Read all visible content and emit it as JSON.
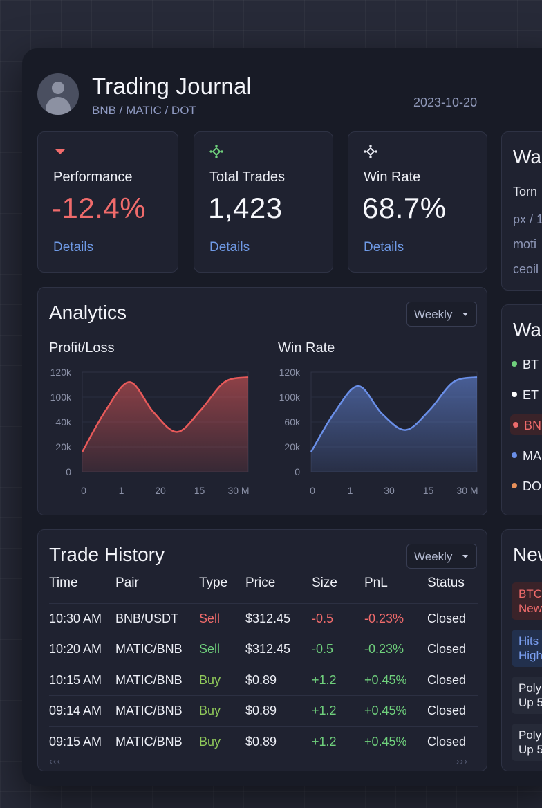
{
  "header": {
    "title": "Trading Journal",
    "subtitle": "BNB / MATIC / DOT",
    "date": "2023-10-20"
  },
  "stats": [
    {
      "label": "Performance",
      "value": "-12.4%",
      "link": "Details",
      "icon": "caret-down-icon",
      "color": "#ef6b6b"
    },
    {
      "label": "Total Trades",
      "value": "1,423",
      "link": "Details",
      "icon": "binance-icon",
      "color": "#6fd07c"
    },
    {
      "label": "Win Rate",
      "value": "68.7%",
      "link": "Details",
      "icon": "binance-icon",
      "color": "#e6e8f0"
    }
  ],
  "analytics": {
    "title": "Analytics",
    "period": "Weekly"
  },
  "chart_data": [
    {
      "type": "area",
      "title": "Profit/Loss",
      "yticks": [
        "120k",
        "100k",
        "40k",
        "20k",
        "0"
      ],
      "xticks": [
        "0",
        "1",
        "20",
        "15",
        "30 M"
      ],
      "color": "#e85a5a",
      "values": [
        0.2,
        0.62,
        0.9,
        0.6,
        0.4,
        0.62,
        0.9,
        0.95
      ]
    },
    {
      "type": "area",
      "title": "Win Rate",
      "yticks": [
        "120k",
        "100k",
        "60k",
        "20k",
        "0"
      ],
      "xticks": [
        "0",
        "1",
        "30",
        "15",
        "30 M"
      ],
      "color": "#6a8fe8",
      "values": [
        0.2,
        0.6,
        0.86,
        0.58,
        0.42,
        0.62,
        0.9,
        0.95
      ]
    }
  ],
  "history": {
    "title": "Trade History",
    "period": "Weekly",
    "columns": [
      "Time",
      "Pair",
      "Type",
      "Price",
      "Size",
      "PnL",
      "Status"
    ],
    "rows": [
      {
        "time": "10:30 AM",
        "pair": "BNB/USDT",
        "type": "Sell",
        "price": "$312.45",
        "size": "-0.5",
        "pnl": "-0.23%",
        "status": "Closed"
      },
      {
        "time": "10:20 AM",
        "pair": "MATIC/BNB",
        "type": "Sell",
        "price": "$312.45",
        "size": "-0.5",
        "pnl": "-0.23%",
        "status": "Closed"
      },
      {
        "time": "10:15 AM",
        "pair": "MATIC/BNB",
        "type": "Buy",
        "price": "$0.89",
        "size": "+1.2",
        "pnl": "+0.45%",
        "status": "Closed"
      },
      {
        "time": "09:14 AM",
        "pair": "MATIC/BNB",
        "type": "Buy",
        "price": "$0.89",
        "size": "+1.2",
        "pnl": "+0.45%",
        "status": "Closed"
      },
      {
        "time": "09:15 AM",
        "pair": "MATIC/BNB",
        "type": "Buy",
        "price": "$0.89",
        "size": "+1.2",
        "pnl": "+0.45%",
        "status": "Closed"
      }
    ],
    "prev": "‹‹‹",
    "next": "›››"
  },
  "wallet": {
    "title": "Wa",
    "lines": [
      "Torn",
      "px / 1",
      "moti",
      "ceoil"
    ]
  },
  "watchlist": {
    "title": "Wa",
    "items": [
      {
        "label": "BT",
        "color": "#6fd07c"
      },
      {
        "label": "ET",
        "color": "#ffffff"
      },
      {
        "label": "BN",
        "color": "#ef6b6b"
      },
      {
        "label": "MA",
        "color": "#6a8fe8"
      },
      {
        "label": "DO",
        "color": "#e8915a"
      }
    ]
  },
  "news": {
    "title": "New",
    "items": [
      {
        "line1": "BTC",
        "line2": "New",
        "bg": "#3a2329",
        "fg": "#ef6b6b"
      },
      {
        "line1": "Hits",
        "line2": "High",
        "bg": "#22304d",
        "fg": "#7a9ef0"
      },
      {
        "line1": "Poly",
        "line2": "Up 5",
        "bg": "#262a38",
        "fg": "#e6e8f0"
      },
      {
        "line1": "Poly",
        "line2": "Up 5",
        "bg": "#262a38",
        "fg": "#e6e8f0"
      }
    ]
  }
}
